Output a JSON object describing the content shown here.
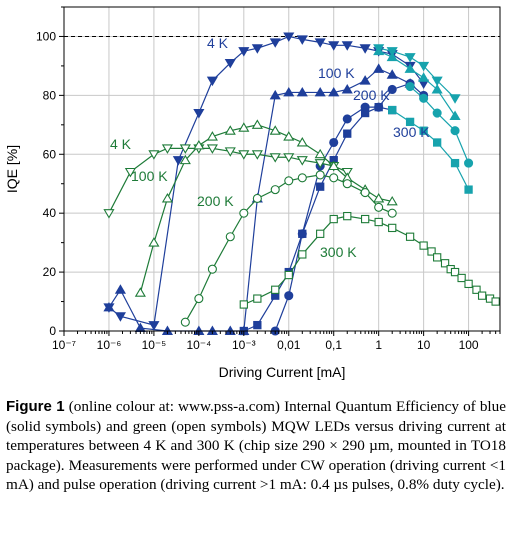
{
  "chart_data": {
    "type": "scatter",
    "xscale": "log",
    "xlim": [
      1e-07,
      500
    ],
    "ylim": [
      0,
      110
    ],
    "xlabel": "Driving Current [mA]",
    "ylabel": "IQE [%]",
    "x_tick_labels": [
      "10⁻⁷",
      "10⁻⁶",
      "10⁻⁵",
      "10⁻⁴",
      "10⁻³",
      "0,01",
      "0,1",
      "1",
      "10",
      "100"
    ],
    "y_tick_labels": [
      "0",
      "20",
      "40",
      "60",
      "80",
      "100"
    ],
    "reference_line": {
      "y": 100,
      "style": "dashed"
    },
    "series": [
      {
        "name": "blue 4 K",
        "label": "4 K",
        "color": "blue",
        "marker": "triangle-down",
        "filled": true,
        "x": [
          1e-06,
          1.8e-06,
          1e-05,
          3.5e-05,
          0.0001,
          0.0002,
          0.0005,
          0.001,
          0.002,
          0.005,
          0.01,
          0.02,
          0.05,
          0.1,
          0.2,
          0.5,
          1,
          2,
          5,
          10
        ],
        "y": [
          8,
          5,
          2,
          58,
          74,
          85,
          91,
          95,
          96,
          98,
          100,
          99,
          98,
          97,
          97,
          96,
          95,
          94,
          90,
          84
        ]
      },
      {
        "name": "blue 100 K",
        "label": "100 K",
        "color": "blue",
        "marker": "triangle-up",
        "filled": true,
        "x": [
          1e-06,
          1.8e-06,
          5e-06,
          2e-05,
          0.0001,
          0.0002,
          0.0005,
          0.001,
          0.002,
          0.005,
          0.01,
          0.02,
          0.05,
          0.1,
          0.2,
          0.5,
          1,
          2,
          5
        ],
        "y": [
          8,
          14,
          1,
          0,
          0,
          0,
          0,
          0,
          45,
          80,
          81,
          81,
          81,
          81,
          82,
          85,
          89,
          87,
          84
        ]
      },
      {
        "name": "blue 200 K",
        "label": "200 K",
        "color": "blue",
        "marker": "circle",
        "filled": true,
        "x": [
          0.005,
          0.01,
          0.02,
          0.05,
          0.1,
          0.2,
          0.5,
          1,
          2,
          5,
          10
        ],
        "y": [
          0,
          12,
          33,
          56,
          64,
          72,
          76,
          76,
          82,
          84,
          80
        ]
      },
      {
        "name": "blue 300 K",
        "label": "300 K",
        "color": "blue",
        "marker": "square",
        "filled": true,
        "x": [
          0.001,
          0.002,
          0.005,
          0.01,
          0.02,
          0.05,
          0.1,
          0.2,
          0.5,
          1,
          2
        ],
        "y": [
          0,
          2,
          12,
          20,
          33,
          49,
          58,
          67,
          74,
          76,
          75
        ]
      },
      {
        "name": "blue high-current pulse (4 K)",
        "label": "",
        "color": "teal",
        "marker": "triangle-down",
        "filled": true,
        "x": [
          1,
          2,
          5,
          10,
          20,
          50
        ],
        "y": [
          96,
          95,
          93,
          90,
          85,
          79
        ]
      },
      {
        "name": "blue high-current pulse (100 K)",
        "label": "",
        "color": "teal",
        "marker": "triangle-up",
        "filled": true,
        "x": [
          1,
          2,
          5,
          10,
          20,
          50
        ],
        "y": [
          95,
          93,
          89,
          86,
          82,
          73
        ]
      },
      {
        "name": "blue high-current pulse (200 K)",
        "label": "",
        "color": "teal",
        "marker": "circle",
        "filled": true,
        "x": [
          5,
          10,
          20,
          50,
          100
        ],
        "y": [
          83,
          79,
          74,
          68,
          57
        ]
      },
      {
        "name": "blue high-current pulse (300 K)",
        "label": "300 K",
        "color": "teal",
        "marker": "square",
        "filled": true,
        "x": [
          2,
          5,
          10,
          20,
          50,
          100
        ],
        "y": [
          75,
          71,
          68,
          64,
          57,
          48
        ]
      },
      {
        "name": "green 4 K",
        "label": "4 K",
        "color": "green",
        "marker": "triangle-down",
        "filled": false,
        "x": [
          1e-06,
          3e-06,
          1e-05,
          2e-05,
          5e-05,
          0.0001,
          0.0002,
          0.0005,
          0.001,
          0.002,
          0.005,
          0.01,
          0.02,
          0.05,
          0.1,
          0.2
        ],
        "y": [
          40,
          54,
          60,
          62,
          62,
          62,
          62,
          61,
          60,
          60,
          59,
          59,
          58,
          57,
          56,
          54
        ]
      },
      {
        "name": "green 100 K",
        "label": "100 K",
        "color": "green",
        "marker": "triangle-up",
        "filled": false,
        "x": [
          5e-06,
          1e-05,
          2e-05,
          5e-05,
          0.0001,
          0.0002,
          0.0005,
          0.001,
          0.002,
          0.005,
          0.01,
          0.02,
          0.05,
          0.1,
          0.2,
          0.5,
          1,
          2
        ],
        "y": [
          13,
          30,
          45,
          58,
          63,
          66,
          68,
          69,
          70,
          68,
          66,
          64,
          60,
          56,
          52,
          48,
          45,
          44
        ]
      },
      {
        "name": "green 200 K",
        "label": "200 K",
        "color": "green",
        "marker": "circle",
        "filled": false,
        "x": [
          5e-05,
          0.0001,
          0.0002,
          0.0005,
          0.001,
          0.002,
          0.005,
          0.01,
          0.02,
          0.05,
          0.1,
          0.2,
          0.5,
          1,
          2
        ],
        "y": [
          3,
          11,
          21,
          32,
          40,
          45,
          48,
          51,
          52,
          53,
          52,
          50,
          47,
          42,
          40
        ]
      },
      {
        "name": "green 300 K",
        "label": "300 K",
        "color": "green",
        "marker": "square",
        "filled": false,
        "x": [
          0.001,
          0.002,
          0.005,
          0.01,
          0.02,
          0.05,
          0.1,
          0.2,
          0.5,
          1,
          2,
          5,
          10,
          15,
          20,
          30,
          40,
          50,
          70,
          100,
          150,
          200,
          300,
          400
        ],
        "y": [
          9,
          11,
          14,
          19,
          26,
          33,
          38,
          39,
          38,
          37,
          35,
          32,
          29,
          27,
          25,
          23,
          21,
          20,
          18,
          16,
          14,
          12,
          11,
          10
        ]
      }
    ],
    "annotations": [
      {
        "text": "4 K",
        "color": "blue"
      },
      {
        "text": "100 K",
        "color": "blue"
      },
      {
        "text": "200 K",
        "color": "blue"
      },
      {
        "text": "300 K",
        "color": "blue"
      },
      {
        "text": "4 K",
        "color": "green"
      },
      {
        "text": "100 K",
        "color": "green"
      },
      {
        "text": "200 K",
        "color": "green"
      },
      {
        "text": "300 K",
        "color": "green"
      }
    ],
    "colors": {
      "blue": "#1f3f9b",
      "green": "#1e7b38",
      "teal": "#17a3ad"
    }
  },
  "caption": {
    "label": "Figure 1",
    "text": " (online colour at: www.pss-a.com) Internal Quantum Efficiency of blue (solid symbols) and green (open symbols) MQW LEDs versus driving current at temperatures between 4 K and 300 K (chip size 290 × 290 µm, mounted in TO18 package). Measurements were performed under CW operation (driving current <1 mA) and pulse operation (driving current >1 mA: 0.4 µs pulses, 0.8% duty cycle)."
  }
}
